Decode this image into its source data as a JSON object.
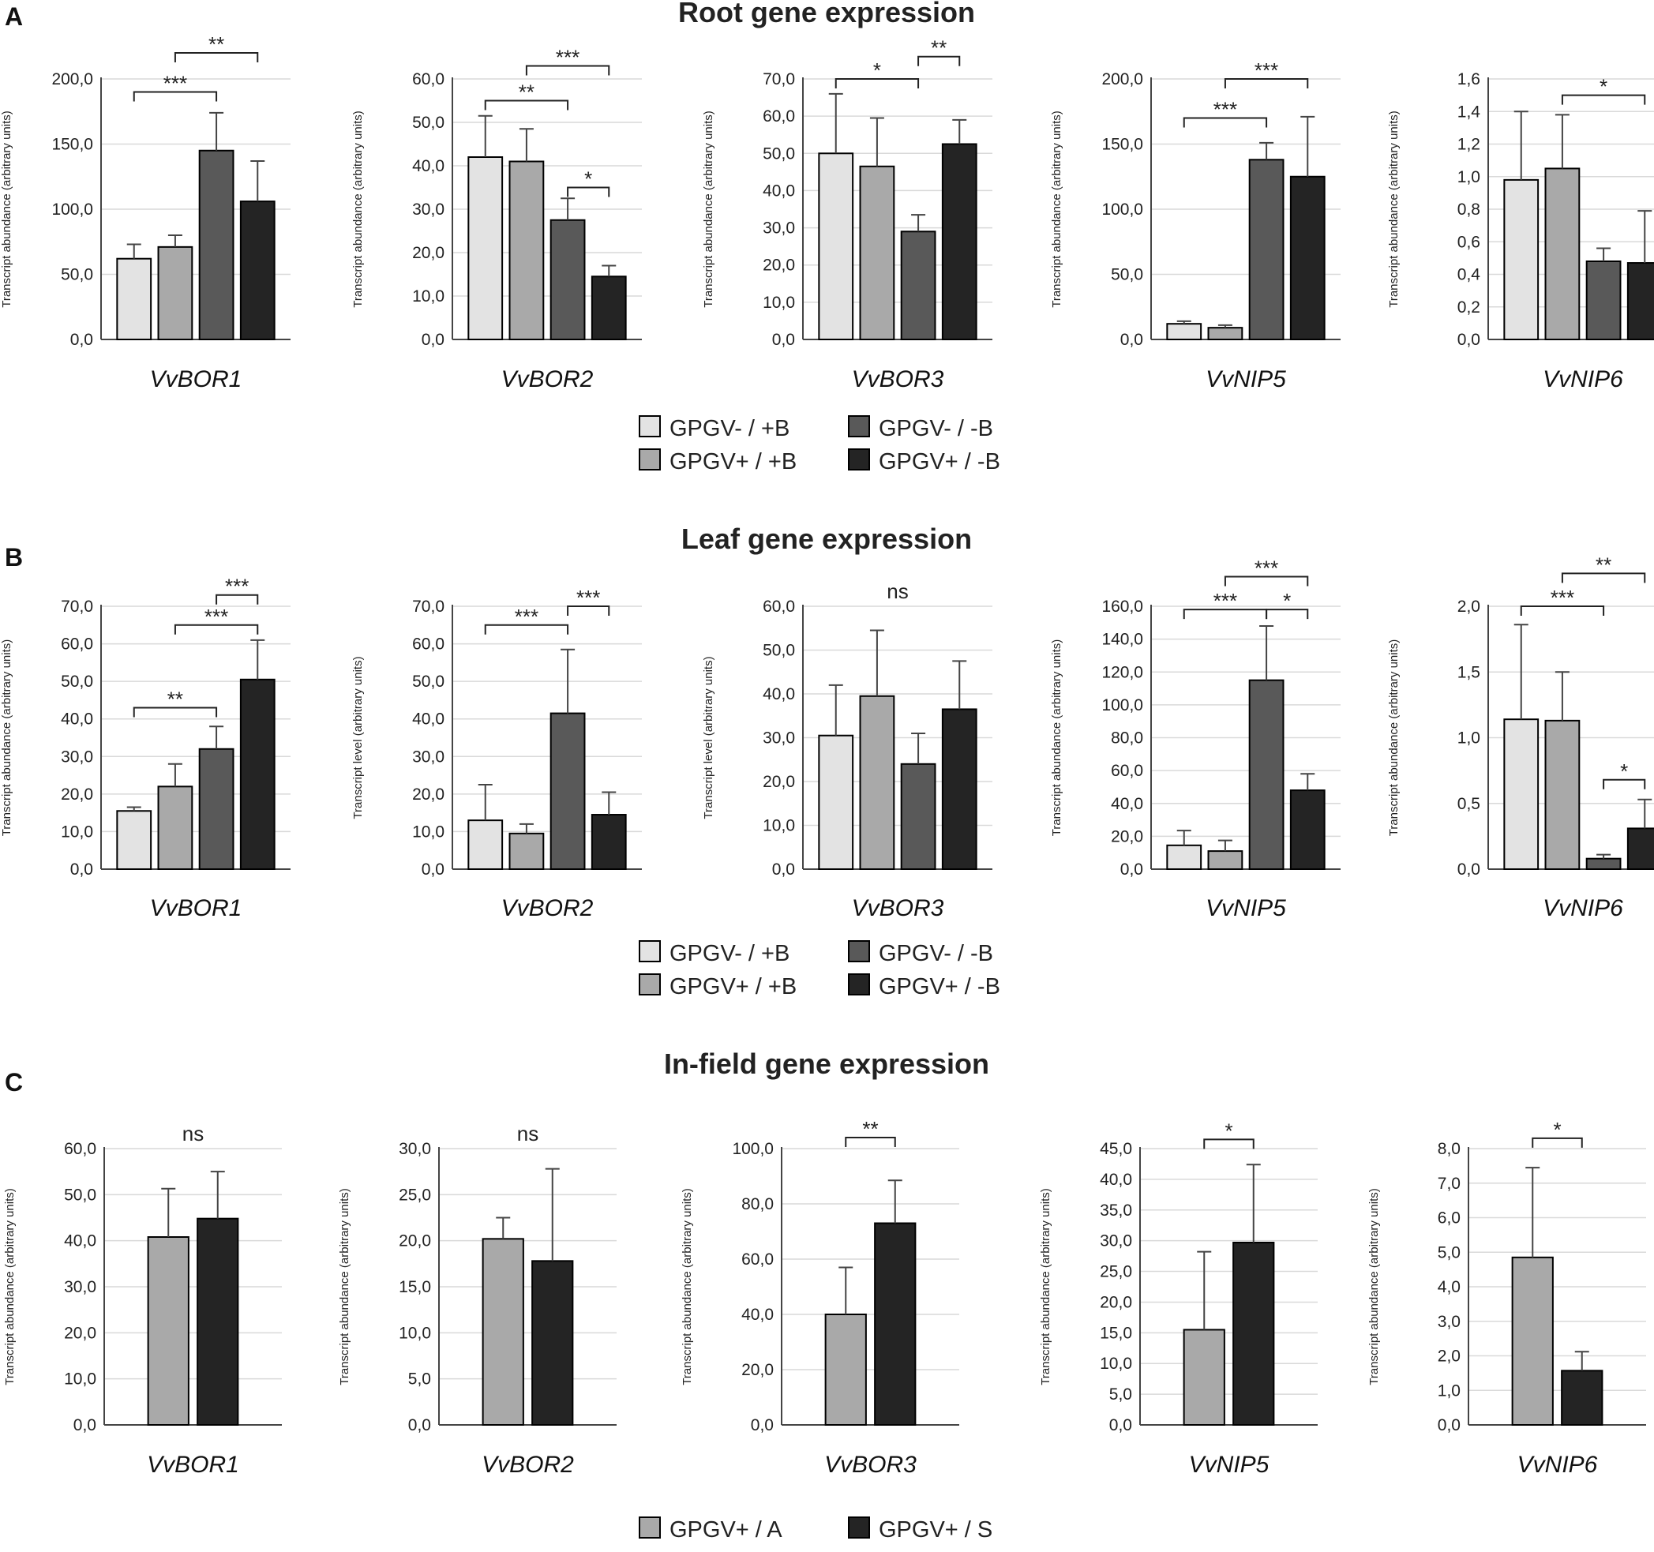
{
  "colors": {
    "GPGV-/+B": "#e3e3e3",
    "GPGV+/+B": "#a9a9a9",
    "GPGV-/-B": "#595959",
    "GPGV+/-B": "#242424",
    "GPGV+/A": "#a9a9a9",
    "GPGV+/S": "#242424"
  },
  "legend_ab": [
    {
      "label": "GPGV- / +B",
      "key": "GPGV-/+B"
    },
    {
      "label": "GPGV- / -B",
      "key": "GPGV-/-B"
    },
    {
      "label": "GPGV+ / +B",
      "key": "GPGV+/+B"
    },
    {
      "label": "GPGV+ / -B",
      "key": "GPGV+/-B"
    }
  ],
  "legend_c": [
    {
      "label": "GPGV+ / A",
      "key": "GPGV+/A"
    },
    {
      "label": "GPGV+ / S",
      "key": "GPGV+/S"
    }
  ],
  "chart_data": [
    {
      "panel": "A",
      "title": "Root gene expression",
      "type": "bar",
      "series_keys": [
        "GPGV-/+B",
        "GPGV+/+B",
        "GPGV-/-B",
        "GPGV+/-B"
      ],
      "charts": [
        {
          "gene": "VvBOR1",
          "ylabel": "Transcript abundance (arbitrary units)",
          "ylim": [
            0,
            200
          ],
          "step": 50,
          "decimals": 1,
          "values": [
            62,
            71,
            145,
            106
          ],
          "errors": [
            11,
            9,
            29,
            31
          ],
          "sig": [
            {
              "from": 0,
              "to": 2,
              "label": "***",
              "at": 190
            },
            {
              "from": 1,
              "to": 3,
              "label": "**",
              "at": 220
            }
          ]
        },
        {
          "gene": "VvBOR2",
          "ylabel": "Transcript abundance (arbitrary units)",
          "ylim": [
            0,
            60
          ],
          "step": 10,
          "decimals": 1,
          "values": [
            42,
            41,
            27.5,
            14.5
          ],
          "errors": [
            9.5,
            7.5,
            5,
            2.5
          ],
          "sig": [
            {
              "from": 0,
              "to": 2,
              "label": "**",
              "at": 55
            },
            {
              "from": 1,
              "to": 3,
              "label": "***",
              "at": 63
            },
            {
              "from": 2,
              "to": 3,
              "label": "*",
              "at": 35
            }
          ]
        },
        {
          "gene": "VvBOR3",
          "ylabel": "Transcript abundance (arbitrary units)",
          "ylim": [
            0,
            70
          ],
          "step": 10,
          "decimals": 1,
          "values": [
            50,
            46.5,
            29,
            52.5
          ],
          "errors": [
            16,
            13,
            4.5,
            6.5
          ],
          "sig": [
            {
              "from": 0,
              "to": 2,
              "label": "*",
              "at": 70
            },
            {
              "from": 2,
              "to": 3,
              "label": "**",
              "at": 76
            }
          ]
        },
        {
          "gene": "VvNIP5",
          "ylabel": "Transcript abundance (arbitrary units)",
          "ylim": [
            0,
            200
          ],
          "step": 50,
          "decimals": 1,
          "values": [
            12,
            9,
            138,
            125
          ],
          "errors": [
            2,
            2,
            13,
            46
          ],
          "sig": [
            {
              "from": 0,
              "to": 2,
              "label": "***",
              "at": 170
            },
            {
              "from": 1,
              "to": 3,
              "label": "***",
              "at": 200
            }
          ]
        },
        {
          "gene": "VvNIP6",
          "ylabel": "Transcript abundance (arbitrary units)",
          "ylim": [
            0,
            1.6
          ],
          "step": 0.2,
          "decimals": 1,
          "values": [
            0.98,
            1.05,
            0.48,
            0.47
          ],
          "errors": [
            0.42,
            0.33,
            0.08,
            0.32
          ],
          "sig": [
            {
              "from": 1,
              "to": 3,
              "label": "*",
              "at": 1.5
            }
          ]
        }
      ]
    },
    {
      "panel": "B",
      "title": "Leaf gene expression",
      "type": "bar",
      "series_keys": [
        "GPGV-/+B",
        "GPGV+/+B",
        "GPGV-/-B",
        "GPGV+/-B"
      ],
      "charts": [
        {
          "gene": "VvBOR1",
          "ylabel": "Transcript abundance (arbitrary units)",
          "ylim": [
            0,
            70
          ],
          "step": 10,
          "decimals": 1,
          "values": [
            15.5,
            22,
            32,
            50.5
          ],
          "errors": [
            1,
            6,
            6,
            10.5
          ],
          "sig": [
            {
              "from": 0,
              "to": 2,
              "label": "**",
              "at": 43
            },
            {
              "from": 1,
              "to": 3,
              "label": "***",
              "at": 65
            },
            {
              "from": 2,
              "to": 3,
              "label": "***",
              "at": 73
            }
          ]
        },
        {
          "gene": "VvBOR2",
          "ylabel": "Transcript level (arbitrary units)",
          "ylim": [
            0,
            70
          ],
          "step": 10,
          "decimals": 1,
          "values": [
            13,
            9.5,
            41.5,
            14.5
          ],
          "errors": [
            9.5,
            2.5,
            17,
            6
          ],
          "sig": [
            {
              "from": 0,
              "to": 2,
              "label": "***",
              "at": 65
            },
            {
              "from": 2,
              "to": 3,
              "label": "***",
              "at": 70
            }
          ]
        },
        {
          "gene": "VvBOR3",
          "ylabel": "Transcript level (arbitrary units)",
          "ylim": [
            0,
            60
          ],
          "step": 10,
          "decimals": 1,
          "values": [
            30.5,
            39.5,
            24,
            36.5
          ],
          "errors": [
            11.5,
            15,
            7,
            11
          ],
          "ns": "ns"
        },
        {
          "gene": "VvNIP5",
          "ylabel": "Transcript abundance (arbitrary units)",
          "ylim": [
            0,
            160
          ],
          "step": 20,
          "decimals": 1,
          "values": [
            14.5,
            11,
            115,
            48
          ],
          "errors": [
            9,
            6.5,
            33,
            10
          ],
          "sig": [
            {
              "from": 0,
              "to": 2,
              "label": "***",
              "at": 158
            },
            {
              "from": 2,
              "to": 3,
              "label": "*",
              "at": 158
            },
            {
              "from": 1,
              "to": 3,
              "label": "***",
              "at": 178
            }
          ]
        },
        {
          "gene": "VvNIP6",
          "ylabel": "Transcript abundance (arbitrary units)",
          "ylim": [
            0,
            2.0
          ],
          "step": 0.5,
          "decimals": 1,
          "values": [
            1.14,
            1.13,
            0.08,
            0.31
          ],
          "errors": [
            0.72,
            0.37,
            0.03,
            0.22
          ],
          "sig": [
            {
              "from": 0,
              "to": 2,
              "label": "***",
              "at": 2.0
            },
            {
              "from": 1,
              "to": 3,
              "label": "**",
              "at": 2.25
            },
            {
              "from": 2,
              "to": 3,
              "label": "*",
              "at": 0.68
            }
          ]
        }
      ]
    },
    {
      "panel": "C",
      "title": "In-field gene expression",
      "type": "bar",
      "series_keys": [
        "GPGV+/A",
        "GPGV+/S"
      ],
      "charts": [
        {
          "gene": "VvBOR1",
          "ylabel": "Transcript abundance (arbitrary units)",
          "ylim": [
            0,
            60
          ],
          "step": 10,
          "decimals": 1,
          "values": [
            40.8,
            44.8
          ],
          "errors": [
            10.5,
            10.2
          ],
          "ns": "ns"
        },
        {
          "gene": "VvBOR2",
          "ylabel": "Transcript abundance (arbitrary units)",
          "ylim": [
            0,
            30
          ],
          "step": 5,
          "decimals": 1,
          "values": [
            20.2,
            17.8
          ],
          "errors": [
            2.3,
            10
          ],
          "ns": "ns"
        },
        {
          "gene": "VvBOR3",
          "ylabel": "Transcript abundance (arbitrary units)",
          "ylim": [
            0,
            100
          ],
          "step": 20,
          "decimals": 1,
          "values": [
            40,
            73
          ],
          "errors": [
            17,
            15.5
          ],
          "sig": [
            {
              "from": 0,
              "to": 1,
              "label": "**",
              "at": 104
            }
          ]
        },
        {
          "gene": "VvNIP5",
          "ylabel": "Transcript abundance (arbitrary units)",
          "ylim": [
            0,
            45
          ],
          "step": 5,
          "decimals": 1,
          "values": [
            15.5,
            29.7
          ],
          "errors": [
            12.7,
            12.7
          ],
          "sig": [
            {
              "from": 0,
              "to": 1,
              "label": "*",
              "at": 46.5
            }
          ]
        },
        {
          "gene": "VvNIP6",
          "ylabel": "Transcript abundance (arbitrary units)",
          "ylim": [
            0,
            8
          ],
          "step": 1,
          "decimals": 1,
          "values": [
            4.85,
            1.57
          ],
          "errors": [
            2.6,
            0.55
          ],
          "sig": [
            {
              "from": 0,
              "to": 1,
              "label": "*",
              "at": 8.3
            }
          ]
        }
      ]
    }
  ]
}
